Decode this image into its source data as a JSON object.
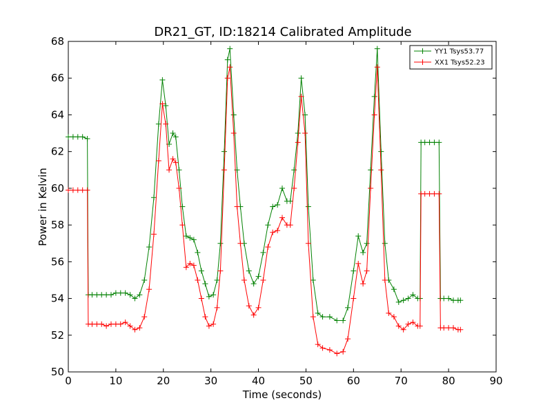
{
  "chart_data": {
    "type": "line",
    "title": "DR21_GT, ID:18214 Calibrated Amplitude",
    "xlabel": "Time (seconds)",
    "ylabel": "Power in Kelvin",
    "xlim": [
      0,
      90
    ],
    "ylim": [
      50,
      68
    ],
    "xticks": [
      0,
      10,
      20,
      30,
      40,
      50,
      60,
      70,
      80,
      90
    ],
    "yticks": [
      50,
      52,
      54,
      56,
      58,
      60,
      62,
      64,
      66,
      68
    ],
    "grid": false,
    "legend_position": "top-right",
    "marker": "+",
    "series": [
      {
        "name": "YY1 Tsys53.77",
        "color": "#008000",
        "points": [
          [
            0,
            62.8
          ],
          [
            1,
            62.8
          ],
          [
            2,
            62.8
          ],
          [
            3,
            62.8
          ],
          [
            4,
            62.7
          ],
          [
            4.2,
            54.2
          ],
          [
            5,
            54.2
          ],
          [
            6,
            54.2
          ],
          [
            7,
            54.2
          ],
          [
            8,
            54.2
          ],
          [
            9,
            54.2
          ],
          [
            10,
            54.3
          ],
          [
            11,
            54.3
          ],
          [
            12,
            54.3
          ],
          [
            13,
            54.2
          ],
          [
            14,
            54.0
          ],
          [
            15,
            54.2
          ],
          [
            16,
            55.0
          ],
          [
            17,
            56.8
          ],
          [
            18,
            59.5
          ],
          [
            19,
            63.5
          ],
          [
            19.8,
            65.9
          ],
          [
            20.5,
            64.5
          ],
          [
            21.2,
            62.4
          ],
          [
            22,
            63.0
          ],
          [
            22.6,
            62.8
          ],
          [
            23.3,
            61.0
          ],
          [
            24,
            59.0
          ],
          [
            24.8,
            57.4
          ],
          [
            25.6,
            57.3
          ],
          [
            26.4,
            57.2
          ],
          [
            27.2,
            56.5
          ],
          [
            28,
            55.5
          ],
          [
            28.8,
            54.8
          ],
          [
            29.6,
            54.1
          ],
          [
            30.5,
            54.2
          ],
          [
            31.3,
            55.0
          ],
          [
            32,
            57.0
          ],
          [
            32.8,
            62.0
          ],
          [
            33.5,
            67.0
          ],
          [
            34,
            67.6
          ],
          [
            34.8,
            64.0
          ],
          [
            35.5,
            61.0
          ],
          [
            36.2,
            59.0
          ],
          [
            37,
            57.0
          ],
          [
            38,
            55.5
          ],
          [
            39,
            54.8
          ],
          [
            40,
            55.2
          ],
          [
            41,
            56.5
          ],
          [
            42,
            58.0
          ],
          [
            43,
            59.0
          ],
          [
            44,
            59.1
          ],
          [
            45,
            60.0
          ],
          [
            46,
            59.3
          ],
          [
            46.7,
            59.3
          ],
          [
            47.5,
            61.0
          ],
          [
            48.3,
            63.0
          ],
          [
            49,
            66.0
          ],
          [
            49.8,
            64.0
          ],
          [
            50.5,
            59.0
          ],
          [
            51.5,
            55.0
          ],
          [
            52.5,
            53.2
          ],
          [
            53.5,
            53.0
          ],
          [
            55,
            53.0
          ],
          [
            56.5,
            52.8
          ],
          [
            57.8,
            52.8
          ],
          [
            58.8,
            53.5
          ],
          [
            60,
            55.5
          ],
          [
            61,
            57.4
          ],
          [
            62,
            56.5
          ],
          [
            62.8,
            57.0
          ],
          [
            63.6,
            61.0
          ],
          [
            64.4,
            65.0
          ],
          [
            65,
            67.6
          ],
          [
            65.8,
            62.0
          ],
          [
            66.6,
            57.0
          ],
          [
            67.4,
            55.0
          ],
          [
            68.5,
            54.5
          ],
          [
            69.5,
            53.8
          ],
          [
            70.5,
            53.9
          ],
          [
            71.5,
            54.0
          ],
          [
            72.5,
            54.2
          ],
          [
            73.5,
            54.0
          ],
          [
            74,
            54.0
          ],
          [
            74.2,
            62.5
          ],
          [
            75,
            62.5
          ],
          [
            76,
            62.5
          ],
          [
            77,
            62.5
          ],
          [
            78,
            62.5
          ],
          [
            78.3,
            54.0
          ],
          [
            79,
            54.0
          ],
          [
            80,
            54.0
          ],
          [
            81,
            53.9
          ],
          [
            82,
            53.9
          ],
          [
            82.5,
            53.9
          ]
        ]
      },
      {
        "name": "XX1 Tsys52.23",
        "color": "#ff0000",
        "points": [
          [
            0,
            59.9
          ],
          [
            1,
            59.9
          ],
          [
            2,
            59.9
          ],
          [
            3,
            59.9
          ],
          [
            4,
            59.9
          ],
          [
            4.2,
            52.6
          ],
          [
            5,
            52.6
          ],
          [
            6,
            52.6
          ],
          [
            7,
            52.6
          ],
          [
            8,
            52.5
          ],
          [
            9,
            52.6
          ],
          [
            10,
            52.6
          ],
          [
            11,
            52.6
          ],
          [
            12,
            52.7
          ],
          [
            13,
            52.5
          ],
          [
            14,
            52.3
          ],
          [
            15,
            52.4
          ],
          [
            16,
            53.0
          ],
          [
            17,
            54.5
          ],
          [
            18,
            57.5
          ],
          [
            19,
            61.5
          ],
          [
            19.8,
            64.6
          ],
          [
            20.5,
            63.5
          ],
          [
            21.2,
            61.0
          ],
          [
            22,
            61.6
          ],
          [
            22.6,
            61.4
          ],
          [
            23.3,
            60.0
          ],
          [
            24,
            58.0
          ],
          [
            24.8,
            55.7
          ],
          [
            25.6,
            55.9
          ],
          [
            26.4,
            55.8
          ],
          [
            27.2,
            55.0
          ],
          [
            28,
            54.0
          ],
          [
            28.8,
            53.0
          ],
          [
            29.6,
            52.5
          ],
          [
            30.5,
            52.6
          ],
          [
            31.3,
            53.5
          ],
          [
            32,
            55.5
          ],
          [
            32.8,
            61.0
          ],
          [
            33.5,
            66.0
          ],
          [
            34,
            66.6
          ],
          [
            34.8,
            63.0
          ],
          [
            35.5,
            59.0
          ],
          [
            36.2,
            57.0
          ],
          [
            37,
            55.0
          ],
          [
            38,
            53.6
          ],
          [
            39,
            53.1
          ],
          [
            40,
            53.5
          ],
          [
            41,
            55.0
          ],
          [
            42,
            56.8
          ],
          [
            43,
            57.6
          ],
          [
            44,
            57.7
          ],
          [
            45,
            58.4
          ],
          [
            46,
            58.0
          ],
          [
            46.7,
            58.0
          ],
          [
            47.5,
            60.0
          ],
          [
            48.3,
            62.5
          ],
          [
            49,
            65.0
          ],
          [
            49.8,
            63.0
          ],
          [
            50.5,
            57.0
          ],
          [
            51.5,
            53.0
          ],
          [
            52.5,
            51.5
          ],
          [
            53.5,
            51.3
          ],
          [
            55,
            51.2
          ],
          [
            56.5,
            51.0
          ],
          [
            57.8,
            51.1
          ],
          [
            58.8,
            51.8
          ],
          [
            60,
            54.0
          ],
          [
            61,
            55.9
          ],
          [
            62,
            54.8
          ],
          [
            62.8,
            55.5
          ],
          [
            63.6,
            60.0
          ],
          [
            64.4,
            64.0
          ],
          [
            65,
            66.6
          ],
          [
            65.8,
            61.0
          ],
          [
            66.6,
            55.0
          ],
          [
            67.4,
            53.2
          ],
          [
            68.5,
            53.0
          ],
          [
            69.5,
            52.5
          ],
          [
            70.5,
            52.3
          ],
          [
            71.5,
            52.6
          ],
          [
            72.5,
            52.7
          ],
          [
            73.5,
            52.5
          ],
          [
            74,
            52.5
          ],
          [
            74.2,
            59.7
          ],
          [
            75,
            59.7
          ],
          [
            76,
            59.7
          ],
          [
            77,
            59.7
          ],
          [
            78,
            59.7
          ],
          [
            78.3,
            52.4
          ],
          [
            79,
            52.4
          ],
          [
            80,
            52.4
          ],
          [
            81,
            52.4
          ],
          [
            82,
            52.3
          ],
          [
            82.5,
            52.3
          ]
        ]
      }
    ]
  }
}
